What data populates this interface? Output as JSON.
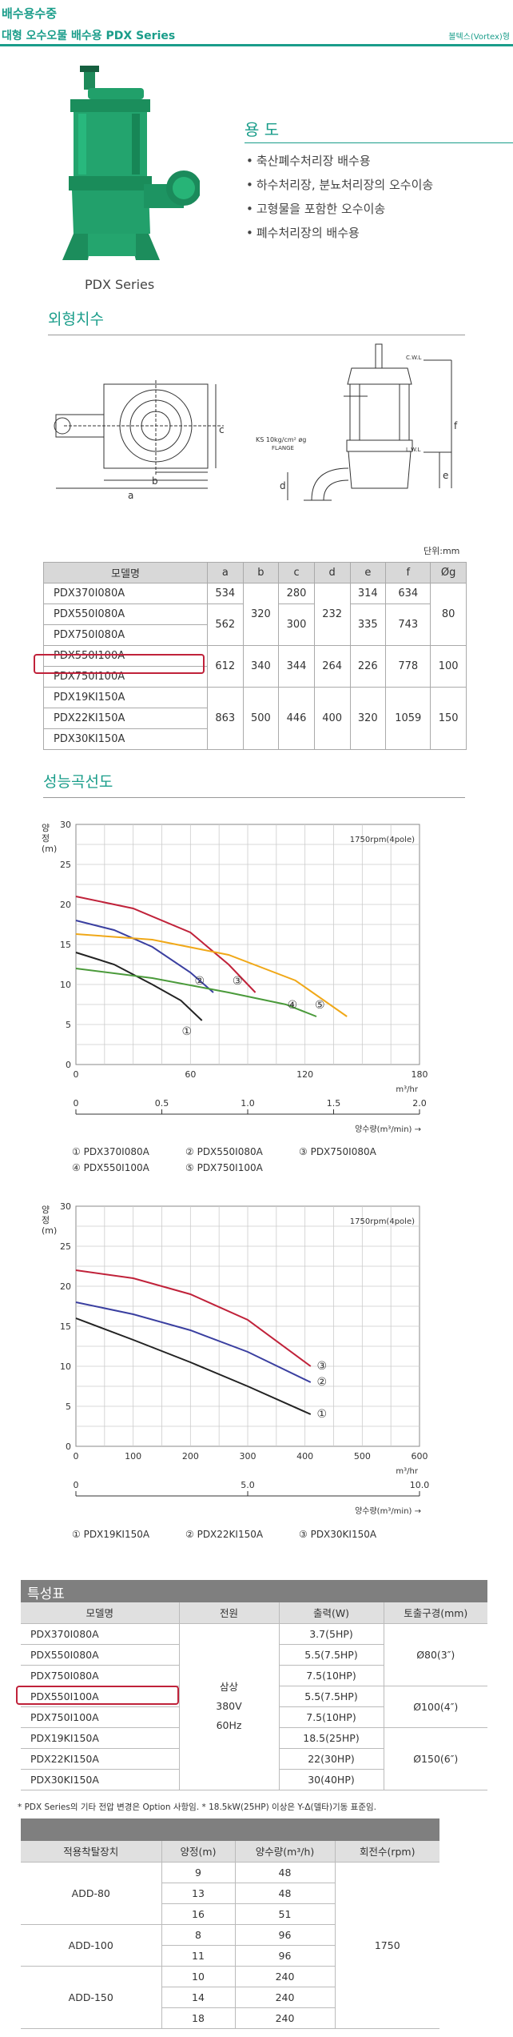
{
  "header": {
    "category": "배수용수중",
    "title": "대형 오수오물 배수용 PDX Series",
    "type_label": "볼텍스(Vortex)형"
  },
  "product": {
    "caption": "PDX Series"
  },
  "usage": {
    "title": "용 도",
    "items": [
      "축산폐수처리장 배수용",
      "하수처리장, 분뇨처리장의 오수이송",
      "고형물을 포함한 오수이송",
      "폐수처리장의 배수용"
    ]
  },
  "dimensions": {
    "title": "외형치수",
    "drawing_labels": {
      "a": "a",
      "b": "b",
      "c": "c",
      "d": "d",
      "e": "e",
      "f": "f",
      "cwl": "C.W.L",
      "lwl": "L.W.L",
      "ks": "KS 10kg/cm² øg",
      "flange": "FLANGE"
    },
    "unit": "단위:mm",
    "headers": [
      "모델명",
      "a",
      "b",
      "c",
      "d",
      "e",
      "f",
      "Øg"
    ],
    "rows": [
      [
        "PDX370I080A",
        "534",
        "320",
        "280",
        "232",
        "314",
        "634",
        "80"
      ],
      [
        "PDX550I080A",
        "562",
        "",
        "300",
        "",
        "335",
        "743",
        ""
      ],
      [
        "PDX750I080A",
        "",
        "",
        "",
        "",
        "",
        "",
        ""
      ],
      [
        "PDX550I100A",
        "612",
        "340",
        "344",
        "264",
        "226",
        "778",
        "100"
      ],
      [
        "PDX750I100A",
        "",
        "",
        "",
        "",
        "",
        "",
        ""
      ],
      [
        "PDX19KI150A",
        "863",
        "500",
        "446",
        "400",
        "320",
        "1059",
        "150"
      ],
      [
        "PDX22KI150A",
        "",
        "",
        "",
        "",
        "",
        "",
        ""
      ],
      [
        "PDX30KI150A",
        "",
        "",
        "",
        "",
        "",
        "",
        ""
      ]
    ]
  },
  "performance": {
    "title": "성능곡선도"
  },
  "chart_labels": {
    "ylabel": "양정(m)",
    "xunit": "m³/hr",
    "xlabel2": "양수량(m³/min) →"
  },
  "chart_data": [
    {
      "type": "line",
      "annotation": "1750rpm(4pole)",
      "ylabel": "양정(m)",
      "xlabel": "m³/hr",
      "xlim": [
        0,
        180
      ],
      "ylim": [
        0,
        30
      ],
      "x_ticks": [
        0,
        60,
        120,
        180
      ],
      "y_ticks": [
        0,
        5,
        10,
        15,
        20,
        25,
        30
      ],
      "x2_ticks": [
        "0",
        "0.5",
        "1.0",
        "1.5",
        "2.0"
      ],
      "x2_label": "양수량(m³/min) →",
      "series": [
        {
          "name": "PDX370I080A",
          "marker": "1",
          "color": "#222222",
          "x": [
            0,
            20,
            40,
            55,
            66
          ],
          "y": [
            14,
            12.5,
            10,
            8,
            5.5
          ]
        },
        {
          "name": "PDX550I080A",
          "marker": "2",
          "color": "#3a3fa0",
          "x": [
            0,
            20,
            40,
            60,
            72
          ],
          "y": [
            18,
            16.8,
            14.7,
            11.5,
            9
          ]
        },
        {
          "name": "PDX750I080A",
          "marker": "3",
          "color": "#c0223a",
          "x": [
            0,
            30,
            60,
            80,
            94
          ],
          "y": [
            21,
            19.5,
            16.5,
            12.5,
            9
          ]
        },
        {
          "name": "PDX550I100A",
          "marker": "4",
          "color": "#4a9a3a",
          "x": [
            0,
            40,
            80,
            110,
            126
          ],
          "y": [
            12,
            10.8,
            9,
            7.5,
            6
          ]
        },
        {
          "name": "PDX750I100A",
          "marker": "5",
          "color": "#f0a818",
          "x": [
            0,
            40,
            80,
            115,
            142
          ],
          "y": [
            16.3,
            15.6,
            13.7,
            10.5,
            6
          ]
        }
      ]
    },
    {
      "type": "line",
      "annotation": "1750rpm(4pole)",
      "ylabel": "양정(m)",
      "xlabel": "m³/hr",
      "xlim": [
        0,
        600
      ],
      "ylim": [
        0,
        30
      ],
      "x_ticks": [
        0,
        100,
        200,
        300,
        400,
        500,
        600
      ],
      "y_ticks": [
        0,
        5,
        10,
        15,
        20,
        25,
        30
      ],
      "x2_ticks": [
        "0",
        "5.0",
        "10.0"
      ],
      "x2_label": "양수량(m³/min) →",
      "series": [
        {
          "name": "PDX19KI150A",
          "marker": "1",
          "color": "#222222",
          "x": [
            0,
            100,
            200,
            300,
            410
          ],
          "y": [
            16,
            13.3,
            10.5,
            7.5,
            4
          ]
        },
        {
          "name": "PDX22KI150A",
          "marker": "2",
          "color": "#3a3fa0",
          "x": [
            0,
            100,
            200,
            300,
            410
          ],
          "y": [
            18,
            16.5,
            14.5,
            11.8,
            8
          ]
        },
        {
          "name": "PDX30KI150A",
          "marker": "3",
          "color": "#c0223a",
          "x": [
            0,
            100,
            200,
            300,
            410
          ],
          "y": [
            22,
            21,
            19,
            15.8,
            10
          ]
        }
      ]
    }
  ],
  "legend1": [
    "PDX370I080A",
    "PDX550I080A",
    "PDX750I080A",
    "PDX550I100A",
    "PDX750I100A"
  ],
  "legend2": [
    "PDX19KI150A",
    "PDX22KI150A",
    "PDX30KI150A"
  ],
  "spec": {
    "title": "특성표",
    "headers": [
      "모델명",
      "전원",
      "출력(W)",
      "토출구경(mm)"
    ],
    "models": [
      "PDX370I080A",
      "PDX550I080A",
      "PDX750I080A",
      "PDX550I100A",
      "PDX750I100A",
      "PDX19KI150A",
      "PDX22KI150A",
      "PDX30KI150A"
    ],
    "outputs": [
      "3.7(5HP)",
      "5.5(7.5HP)",
      "7.5(10HP)",
      "5.5(7.5HP)",
      "7.5(10HP)",
      "18.5(25HP)",
      "22(30HP)",
      "30(40HP)"
    ],
    "power": [
      "삼상",
      "380V",
      "60Hz"
    ],
    "outlets": [
      "Ø80(3″)",
      "Ø100(4″)",
      "Ø150(6″)"
    ],
    "note": "* PDX Series의 기타 전압 변경은 Option 사항임. * 18.5kW(25HP) 이상은 Y-Δ(델타)기동 표준임."
  },
  "adapter": {
    "headers": [
      "적용착탈장치",
      "양정(m)",
      "양수량(m³/h)",
      "회전수(rpm)"
    ],
    "groups": [
      {
        "name": "ADD-80",
        "rows": [
          [
            "9",
            "48"
          ],
          [
            "13",
            "48"
          ],
          [
            "16",
            "51"
          ]
        ]
      },
      {
        "name": "ADD-100",
        "rows": [
          [
            "8",
            "96"
          ],
          [
            "11",
            "96"
          ]
        ]
      },
      {
        "name": "ADD-150",
        "rows": [
          [
            "10",
            "240"
          ],
          [
            "14",
            "240"
          ],
          [
            "18",
            "240"
          ]
        ]
      }
    ],
    "rpm": "1750"
  },
  "colors": {
    "accent": "#1a9d8a",
    "highlight": "#c0223a",
    "bar": "#7f7f7f"
  }
}
